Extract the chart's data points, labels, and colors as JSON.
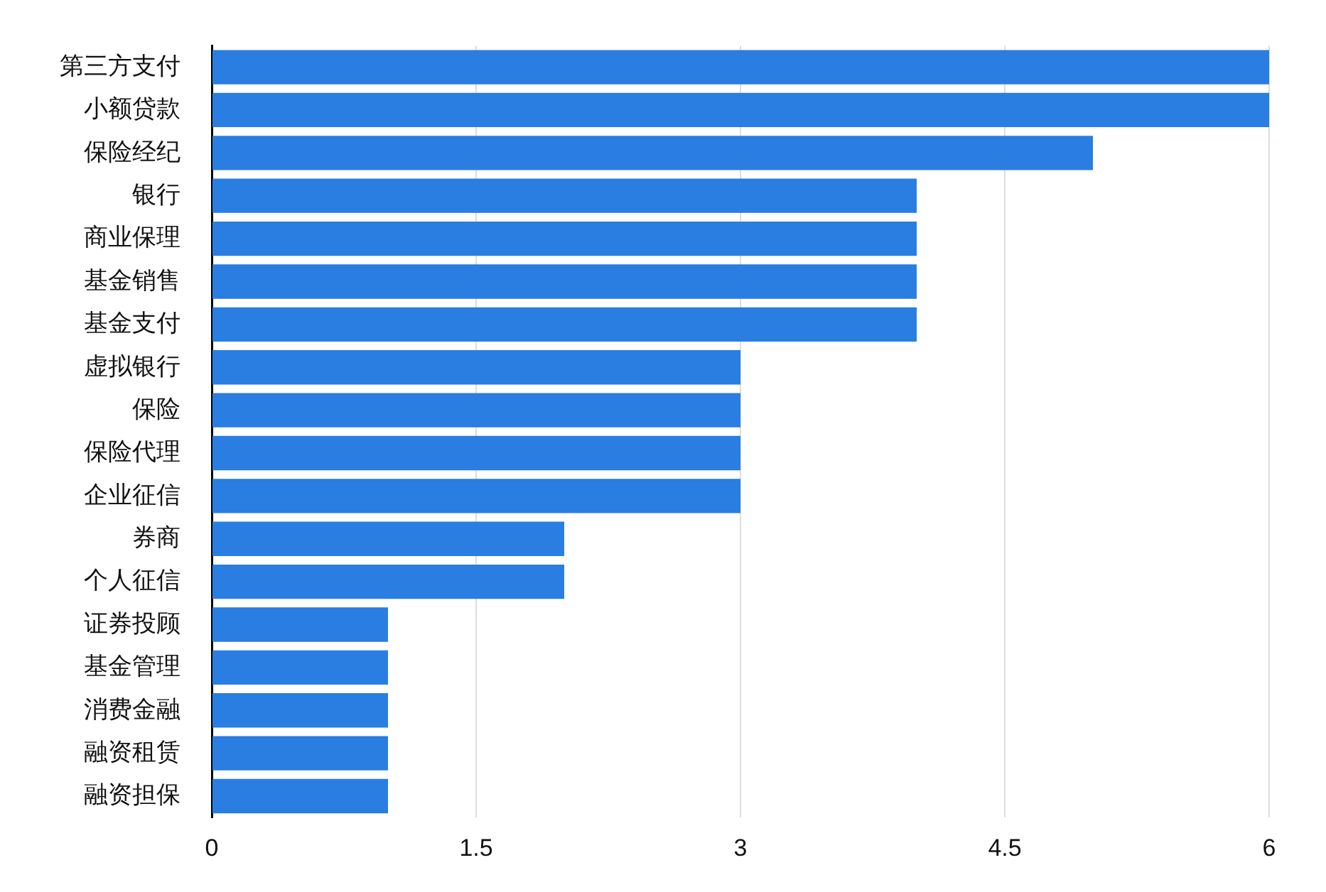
{
  "chart_data": {
    "type": "bar",
    "orientation": "horizontal",
    "categories": [
      "第三方支付",
      "小额贷款",
      "保险经纪",
      "银行",
      "商业保理",
      "基金销售",
      "基金支付",
      "虚拟银行",
      "保险",
      "保险代理",
      "企业征信",
      "券商",
      "个人征信",
      "证券投顾",
      "基金管理",
      "消费金融",
      "融资租赁",
      "融资担保"
    ],
    "values": [
      6,
      6,
      5,
      4,
      4,
      4,
      4,
      3,
      3,
      3,
      3,
      2,
      2,
      1,
      1,
      1,
      1,
      1
    ],
    "color": "#2a7de1",
    "xlim": [
      0,
      6
    ],
    "xticks": [
      0,
      1.5,
      3,
      4.5,
      6
    ],
    "grid": "x",
    "legend": false
  }
}
